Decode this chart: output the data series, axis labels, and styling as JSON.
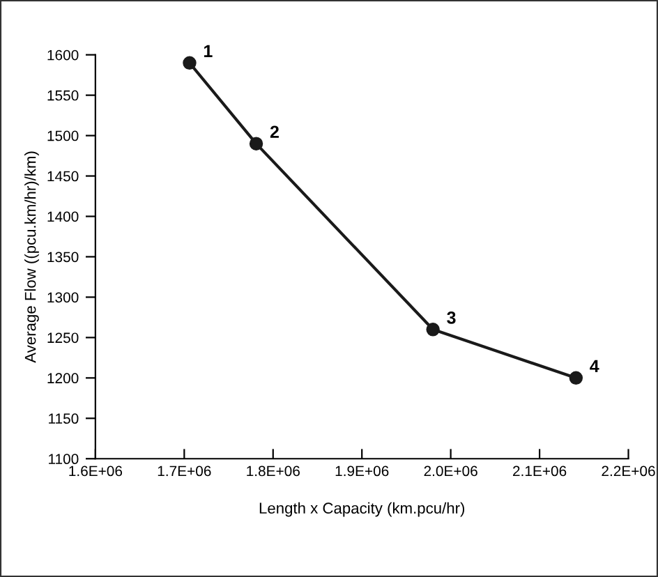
{
  "chart_data": {
    "type": "line",
    "xlabel": "Length x Capacity (km.pcu/hr)",
    "ylabel": "Average Flow ((pcu.km/hr)/km)",
    "x": [
      1706000,
      1781000,
      1980000,
      2141000
    ],
    "series": [
      {
        "color": "#1a1a1a",
        "values": [
          1590,
          1490,
          1260,
          1200
        ]
      }
    ],
    "marker": "circle",
    "line_style": "solid",
    "xlim": [
      1600000,
      2200000
    ],
    "xticks": [
      {
        "value": 1600000,
        "label": "1.6E+06"
      },
      {
        "value": 1700000,
        "label": "1.7E+06"
      },
      {
        "value": 1800000,
        "label": "1.8E+06"
      },
      {
        "value": 1900000,
        "label": "1.9E+06"
      },
      {
        "value": 2000000,
        "label": "2.0E+06"
      },
      {
        "value": 2100000,
        "label": "2.1E+06"
      },
      {
        "value": 2200000,
        "label": "2.2E+06"
      }
    ],
    "ylim": [
      1100,
      1600
    ],
    "yticks": [
      1100,
      1150,
      1200,
      1250,
      1300,
      1350,
      1400,
      1450,
      1500,
      1550,
      1600
    ],
    "grid": false,
    "legend": false,
    "annotations": [
      {
        "text": "1",
        "x": 1706000,
        "y": 1590
      },
      {
        "text": "2",
        "x": 1781000,
        "y": 1490
      },
      {
        "text": "3",
        "x": 1980000,
        "y": 1260
      },
      {
        "text": "4",
        "x": 2141000,
        "y": 1200
      }
    ]
  }
}
